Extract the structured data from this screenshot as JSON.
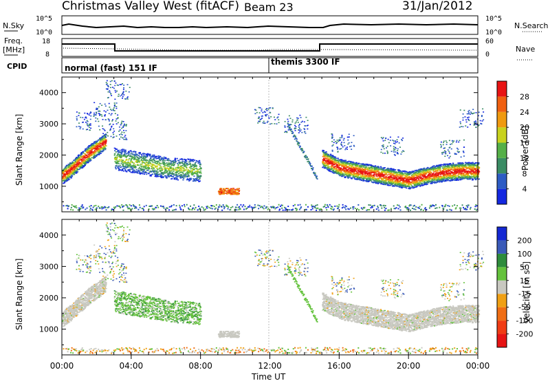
{
  "header": {
    "station": "Christmas Valley West (fitACF)",
    "beam": "Beam 23",
    "date": "31/Jan/2012"
  },
  "noise_panel": {
    "left_label": "N.Sky",
    "left_ticks": [
      "10^5",
      "10^0"
    ],
    "right_label": "N.Search",
    "right_ticks": [
      "10^5",
      "10^0"
    ]
  },
  "freq_panel": {
    "left_label_1": "Freq.",
    "left_label_2": "[MHz]",
    "left_ticks": [
      "18",
      "8"
    ],
    "right_label": "Nave",
    "right_ticks": [
      "60",
      "0"
    ]
  },
  "cpid_panel": {
    "label": "CPID",
    "modes": [
      {
        "name": "normal (fast) 151 IF",
        "start_hour": 0
      },
      {
        "name": "themis 3300 IF",
        "start_hour": 12
      }
    ]
  },
  "x_axis": {
    "label": "Time UT",
    "ticks": [
      "00:00",
      "04:00",
      "08:00",
      "12:00",
      "16:00",
      "20:00",
      "00:00"
    ],
    "range_hours": [
      0,
      24
    ]
  },
  "power_panel": {
    "ylabel": "Slant Range [km]",
    "yticks": [
      "1000",
      "2000",
      "3000",
      "4000"
    ],
    "colorbar_label": "Power [dB]",
    "colorbar_ticks": [
      "4",
      "8",
      "12",
      "16",
      "20",
      "24",
      "28"
    ],
    "colors": [
      "#1428e0",
      "#2d5cc4",
      "#3a8c64",
      "#55b048",
      "#c8d21e",
      "#f09a10",
      "#f06010",
      "#e81414"
    ]
  },
  "velocity_panel": {
    "ylabel": "Slant Range [km]",
    "yticks": [
      "1000",
      "2000",
      "3000",
      "4000"
    ],
    "colorbar_label": "Velocity [m s",
    "colorbar_label_sup": "-1",
    "colorbar_label_end": "]",
    "colorbar_ticks": [
      "200",
      "100",
      "50",
      "15",
      "-15",
      "-50",
      "-100",
      "-200"
    ],
    "colors": [
      "#1428d2",
      "#3a5ab8",
      "#2e8c3c",
      "#64c23c",
      "#c8c8c0",
      "#f0a014",
      "#f06e14",
      "#f03c14",
      "#e61414"
    ]
  },
  "chart_data": {
    "type": "heatmap",
    "title": "Christmas Valley West (fitACF) Beam 23",
    "xlabel": "Time UT",
    "ylabel": "Slant Range [km]",
    "xlim": [
      0,
      24
    ],
    "ylim": [
      180,
      4500
    ],
    "frequency_mhz": [
      {
        "start_hour": 0,
        "end_hour": 3.0,
        "value": 13
      },
      {
        "start_hour": 3.0,
        "end_hour": 15.0,
        "value": 10
      },
      {
        "start_hour": 15.0,
        "end_hour": 24,
        "value": 13.5
      }
    ],
    "scatter_regions": [
      {
        "name": "main echo band",
        "hours": [
          0,
          0.5,
          1,
          1.5,
          2,
          2.5
        ],
        "range_km": [
          1350,
          1550,
          1800,
          2050,
          2250,
          2450
        ],
        "power_db": 24,
        "velocity_ms": 0
      },
      {
        "name": "3-8 UT band",
        "hours": [
          3,
          4,
          5,
          6,
          7,
          8
        ],
        "range_km": [
          1900,
          1800,
          1700,
          1600,
          1550,
          1500
        ],
        "power_db": 10,
        "velocity_ms": 30
      },
      {
        "name": "late echo band",
        "hours": [
          15,
          16,
          17,
          18,
          19,
          20,
          21,
          22,
          23,
          24
        ],
        "range_km": [
          1900,
          1600,
          1500,
          1400,
          1300,
          1200,
          1350,
          1450,
          1500,
          1500
        ],
        "power_db": 22,
        "velocity_ms": 0
      },
      {
        "name": "near range",
        "hours": [
          0,
          24
        ],
        "range_km": [
          300,
          300
        ],
        "power_db": 8,
        "velocity_ms": -50
      }
    ]
  }
}
